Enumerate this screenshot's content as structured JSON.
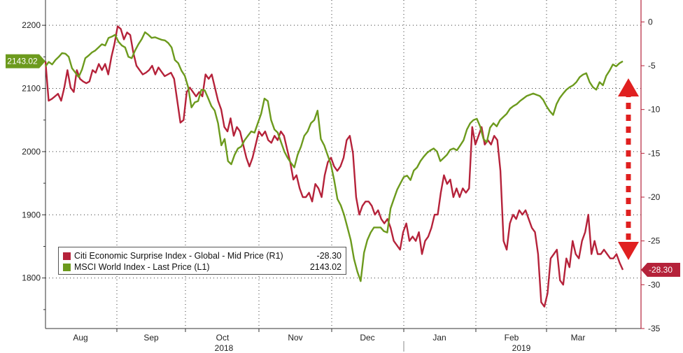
{
  "chart_data": {
    "type": "line",
    "x_axis": {
      "months": [
        "Aug",
        "Sep",
        "Oct",
        "Nov",
        "Dec",
        "Jan",
        "Feb",
        "Mar"
      ],
      "years": [
        "2018",
        "2019"
      ]
    },
    "left_axis": {
      "ticks": [
        1800,
        1900,
        2000,
        2100,
        2200
      ],
      "ylim": [
        1720,
        2240
      ]
    },
    "right_axis": {
      "ticks": [
        0,
        -5,
        -10,
        -15,
        -20,
        -25,
        -30,
        -35
      ],
      "ylim": [
        -35,
        2.5
      ]
    },
    "grid": true,
    "legend_position": "bottom-left",
    "series": [
      {
        "name": "Citi Economic Surprise Index - Global - Mid Price (R1)",
        "axis": "right",
        "color": "#b5223a",
        "last_value": "-28.30",
        "values": [
          -4.5,
          -9,
          -8.8,
          -8.5,
          -8.2,
          -9,
          -7.5,
          -5.5,
          -7.5,
          -8,
          -5.5,
          -6.5,
          -6.8,
          -7,
          -6.8,
          -5.5,
          -5.8,
          -4.8,
          -5.5,
          -4.8,
          -6,
          -4,
          -2.5,
          -0.5,
          -0.8,
          -2,
          -1.2,
          -1.5,
          -3.5,
          -5,
          -5.5,
          -6,
          -5.8,
          -5.5,
          -5,
          -6,
          -5.2,
          -5.7,
          -6.2,
          -6,
          -5.8,
          -6.5,
          -9,
          -11.5,
          -11.2,
          -8,
          -7.5,
          -8,
          -8.5,
          -8,
          -8.5,
          -6,
          -6.5,
          -6,
          -7.5,
          -9,
          -10,
          -12,
          -12.5,
          -11,
          -13,
          -12,
          -12.5,
          -14,
          -15.5,
          -16.5,
          -15.5,
          -14,
          -12.5,
          -13,
          -12.5,
          -13.5,
          -13.8,
          -13,
          -13.5,
          -12.5,
          -13,
          -14.5,
          -16,
          -18,
          -17.5,
          -19,
          -20,
          -20,
          -19.5,
          -20.5,
          -18.5,
          -19,
          -20,
          -17.5,
          -16,
          -15.5,
          -16.5,
          -17,
          -16.5,
          -15.5,
          -13.5,
          -13,
          -15,
          -20,
          -22,
          -21,
          -20.5,
          -20.5,
          -21,
          -22,
          -21.5,
          -22.5,
          -23,
          -22.5,
          -23.5,
          -25,
          -25.5,
          -26,
          -24,
          -23,
          -25,
          -24.5,
          -25,
          -24,
          -26.5,
          -25,
          -24.5,
          -23.5,
          -22,
          -22,
          -19.5,
          -17.5,
          -18.5,
          -18,
          -20,
          -19,
          -20,
          -19,
          -19.5,
          -19,
          -12,
          -14,
          -13,
          -12,
          -14,
          -13.5,
          -14,
          -13,
          -13.5,
          -17,
          -25,
          -26,
          -23,
          -22,
          -22.5,
          -21.5,
          -22,
          -21.5,
          -22.5,
          -23.5,
          -24,
          -26.5,
          -32,
          -32.5,
          -31,
          -27,
          -26.5,
          -26,
          -29.5,
          -30,
          -27,
          -28,
          -25,
          -26.5,
          -27,
          -25,
          -24,
          -22,
          -26.5,
          -25,
          -26.5,
          -26.5,
          -26,
          -26.5,
          -27,
          -27,
          -26.5,
          -27.5,
          -28.3
        ]
      },
      {
        "name": "MSCI World Index - Last Price (L1)",
        "axis": "left",
        "color": "#6c9a1d",
        "last_value": "2143.02",
        "values": [
          2135,
          2142,
          2138,
          2145,
          2150,
          2156,
          2155,
          2150,
          2132,
          2125,
          2118,
          2130,
          2148,
          2152,
          2157,
          2160,
          2165,
          2170,
          2168,
          2180,
          2182,
          2185,
          2174,
          2168,
          2165,
          2150,
          2148,
          2160,
          2170,
          2178,
          2189,
          2185,
          2180,
          2181,
          2179,
          2177,
          2176,
          2172,
          2165,
          2145,
          2140,
          2128,
          2120,
          2102,
          2070,
          2078,
          2080,
          2098,
          2097,
          2085,
          2072,
          2065,
          2045,
          2010,
          2020,
          1985,
          1980,
          1995,
          2005,
          2008,
          2018,
          2025,
          2032,
          2030,
          2045,
          2060,
          2084,
          2080,
          2050,
          2035,
          2030,
          2015,
          2000,
          1990,
          1982,
          1975,
          1995,
          2008,
          2025,
          2032,
          2045,
          2050,
          2065,
          2020,
          2010,
          1995,
          1980,
          1955,
          1925,
          1915,
          1900,
          1880,
          1860,
          1830,
          1810,
          1795,
          1840,
          1860,
          1872,
          1880,
          1880,
          1880,
          1874,
          1872,
          1910,
          1925,
          1940,
          1950,
          1960,
          1962,
          1955,
          1970,
          1975,
          1985,
          1992,
          1998,
          2002,
          2005,
          2000,
          1985,
          1990,
          1995,
          2003,
          2005,
          2002,
          2010,
          2018,
          2035,
          2045,
          2050,
          2052,
          2040,
          2020,
          2015,
          2038,
          2045,
          2040,
          2050,
          2055,
          2060,
          2068,
          2072,
          2075,
          2080,
          2084,
          2088,
          2090,
          2092,
          2090,
          2088,
          2082,
          2072,
          2064,
          2058,
          2075,
          2085,
          2092,
          2098,
          2102,
          2105,
          2110,
          2118,
          2122,
          2124,
          2110,
          2102,
          2098,
          2110,
          2105,
          2120,
          2128,
          2138,
          2135,
          2140,
          2143.02
        ]
      }
    ]
  }
}
